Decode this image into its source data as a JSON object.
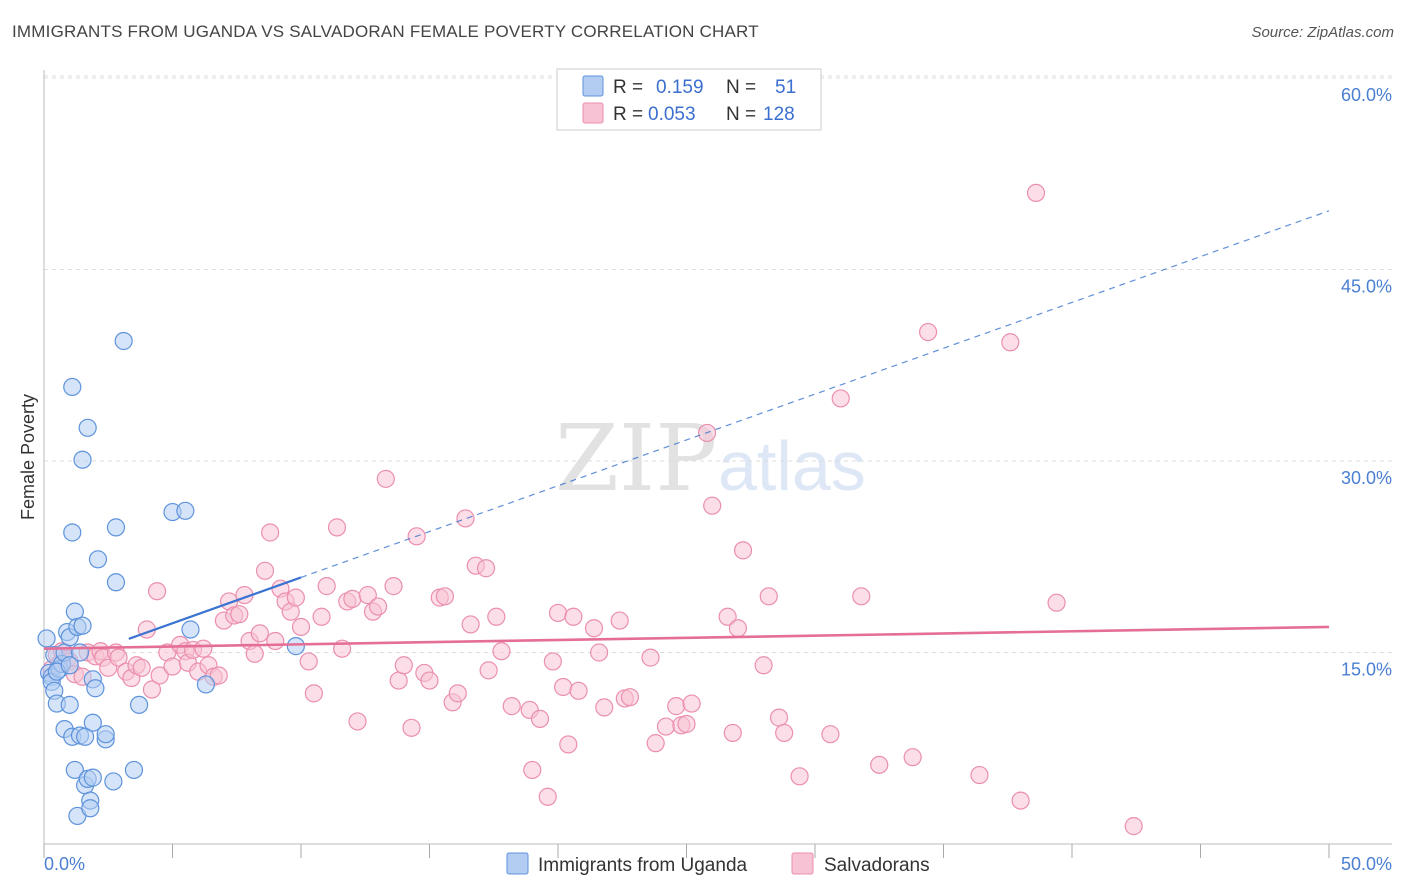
{
  "title": "IMMIGRANTS FROM UGANDA VS SALVADORAN FEMALE POVERTY CORRELATION CHART",
  "source": "Source: ZipAtlas.com",
  "watermark": {
    "zip": "ZIP",
    "atlas": "atlas"
  },
  "colors": {
    "blue_fill": "#b3cdf2",
    "blue_stroke": "#5e93dc",
    "blue_line": "#3a73d0",
    "pink_fill": "#f7c2d3",
    "pink_stroke": "#eb8fae",
    "pink_line": "#e56e97",
    "grid": "#dddddd",
    "tick_label": "#4a7fd1"
  },
  "legend": {
    "rows": [
      {
        "r_label": "R =",
        "r_value": "0.159",
        "n_label": "N =",
        "n_value": "51"
      },
      {
        "r_label": "R =",
        "r_value": "0.053",
        "n_label": "N =",
        "n_value": "128"
      }
    ]
  },
  "chart_data": {
    "type": "scatter",
    "title": "IMMIGRANTS FROM UGANDA VS SALVADORAN FEMALE POVERTY CORRELATION CHART",
    "xlabel": "",
    "ylabel": "Female Poverty",
    "xlim": [
      0,
      50
    ],
    "ylim": [
      0,
      60
    ],
    "x_tick_labels": {
      "min": "0.0%",
      "max": "50.0%"
    },
    "y_ticks": [
      15,
      30,
      45,
      60
    ],
    "y_tick_labels": [
      "15.0%",
      "30.0%",
      "45.0%",
      "60.0%"
    ],
    "grid": true,
    "legend_position": "top-center",
    "series": [
      {
        "name": "Immigrants from Uganda",
        "color": "blue",
        "R": 0.159,
        "N": 51,
        "trend": {
          "x0": 0,
          "y0": 13.7,
          "x1": 50,
          "y1": 49.6,
          "solid_until_x": 10
        },
        "points": [
          [
            0.1,
            16.1
          ],
          [
            0.2,
            13.4
          ],
          [
            0.3,
            13.1
          ],
          [
            0.3,
            12.7
          ],
          [
            0.4,
            14.8
          ],
          [
            0.4,
            12.0
          ],
          [
            0.5,
            11.0
          ],
          [
            0.6,
            13.7
          ],
          [
            0.7,
            14.1
          ],
          [
            0.8,
            15.0
          ],
          [
            0.8,
            9.0
          ],
          [
            0.9,
            16.6
          ],
          [
            1.0,
            16.2
          ],
          [
            1.0,
            10.9
          ],
          [
            1.1,
            35.8
          ],
          [
            1.1,
            24.4
          ],
          [
            1.1,
            8.4
          ],
          [
            1.2,
            18.2
          ],
          [
            1.2,
            5.8
          ],
          [
            1.3,
            2.2
          ],
          [
            1.3,
            17.0
          ],
          [
            1.4,
            15.0
          ],
          [
            1.4,
            8.5
          ],
          [
            1.5,
            17.1
          ],
          [
            1.5,
            30.1
          ],
          [
            1.6,
            8.4
          ],
          [
            1.6,
            4.6
          ],
          [
            1.7,
            32.6
          ],
          [
            1.7,
            5.1
          ],
          [
            1.8,
            3.4
          ],
          [
            1.8,
            2.8
          ],
          [
            1.9,
            5.2
          ],
          [
            1.9,
            12.9
          ],
          [
            1.9,
            9.5
          ],
          [
            2.0,
            12.2
          ],
          [
            2.1,
            22.3
          ],
          [
            2.4,
            8.2
          ],
          [
            2.4,
            8.6
          ],
          [
            2.7,
            4.9
          ],
          [
            2.8,
            20.5
          ],
          [
            2.8,
            24.8
          ],
          [
            3.1,
            39.4
          ],
          [
            3.5,
            5.8
          ],
          [
            3.7,
            10.9
          ],
          [
            5.0,
            26.0
          ],
          [
            5.5,
            26.1
          ],
          [
            5.7,
            16.8
          ],
          [
            6.3,
            12.5
          ],
          [
            9.8,
            15.5
          ],
          [
            0.5,
            13.5
          ],
          [
            1.0,
            14.0
          ]
        ]
      },
      {
        "name": "Salvadorans",
        "color": "pink",
        "R": 0.053,
        "N": 128,
        "trend": {
          "x0": 0,
          "y0": 15.3,
          "x1": 50,
          "y1": 17.0
        },
        "points": [
          [
            0.3,
            13.7
          ],
          [
            0.5,
            14.8
          ],
          [
            0.6,
            14.1
          ],
          [
            0.7,
            15.1
          ],
          [
            0.9,
            14.5
          ],
          [
            1.0,
            14.3
          ],
          [
            1.2,
            13.3
          ],
          [
            1.5,
            13.1
          ],
          [
            1.7,
            15.0
          ],
          [
            2.0,
            14.7
          ],
          [
            2.2,
            15.1
          ],
          [
            2.3,
            14.6
          ],
          [
            2.5,
            13.8
          ],
          [
            2.8,
            15.0
          ],
          [
            2.9,
            14.6
          ],
          [
            3.2,
            13.5
          ],
          [
            3.4,
            13.0
          ],
          [
            3.6,
            14.0
          ],
          [
            3.8,
            13.8
          ],
          [
            4.0,
            16.8
          ],
          [
            4.2,
            12.1
          ],
          [
            4.4,
            19.8
          ],
          [
            4.5,
            13.2
          ],
          [
            4.8,
            15.0
          ],
          [
            5.0,
            13.9
          ],
          [
            5.3,
            15.6
          ],
          [
            5.5,
            15.1
          ],
          [
            5.6,
            14.2
          ],
          [
            5.8,
            15.2
          ],
          [
            6.0,
            13.5
          ],
          [
            6.2,
            15.3
          ],
          [
            6.4,
            14.0
          ],
          [
            6.6,
            13.1
          ],
          [
            6.8,
            13.2
          ],
          [
            7.0,
            17.5
          ],
          [
            7.2,
            19.0
          ],
          [
            7.4,
            17.9
          ],
          [
            7.6,
            18.0
          ],
          [
            7.8,
            19.5
          ],
          [
            8.0,
            15.9
          ],
          [
            8.2,
            14.9
          ],
          [
            8.4,
            16.5
          ],
          [
            8.6,
            21.4
          ],
          [
            8.8,
            24.4
          ],
          [
            9.0,
            15.9
          ],
          [
            9.2,
            20.0
          ],
          [
            9.4,
            19.0
          ],
          [
            9.6,
            18.2
          ],
          [
            9.8,
            19.3
          ],
          [
            10.0,
            17.0
          ],
          [
            10.3,
            14.3
          ],
          [
            10.5,
            11.8
          ],
          [
            10.8,
            17.8
          ],
          [
            11.0,
            20.2
          ],
          [
            11.4,
            24.8
          ],
          [
            11.6,
            15.3
          ],
          [
            11.8,
            19.0
          ],
          [
            12.0,
            19.2
          ],
          [
            12.2,
            9.6
          ],
          [
            12.6,
            19.5
          ],
          [
            12.8,
            18.2
          ],
          [
            13.0,
            18.6
          ],
          [
            13.3,
            28.6
          ],
          [
            13.6,
            20.2
          ],
          [
            13.8,
            12.8
          ],
          [
            14.0,
            14.0
          ],
          [
            14.3,
            9.1
          ],
          [
            14.5,
            24.1
          ],
          [
            14.8,
            13.4
          ],
          [
            15.0,
            12.8
          ],
          [
            15.4,
            19.3
          ],
          [
            15.6,
            19.4
          ],
          [
            15.9,
            11.1
          ],
          [
            16.1,
            11.8
          ],
          [
            16.4,
            25.5
          ],
          [
            16.6,
            17.2
          ],
          [
            16.8,
            21.8
          ],
          [
            17.2,
            21.6
          ],
          [
            17.3,
            13.6
          ],
          [
            17.6,
            17.8
          ],
          [
            17.8,
            15.1
          ],
          [
            18.2,
            10.8
          ],
          [
            18.9,
            10.5
          ],
          [
            19.0,
            5.8
          ],
          [
            19.3,
            9.8
          ],
          [
            19.6,
            3.7
          ],
          [
            19.8,
            14.3
          ],
          [
            20.0,
            18.1
          ],
          [
            20.2,
            12.3
          ],
          [
            20.4,
            7.8
          ],
          [
            20.6,
            17.8
          ],
          [
            20.8,
            12.0
          ],
          [
            21.4,
            16.9
          ],
          [
            21.6,
            15.0
          ],
          [
            21.8,
            10.7
          ],
          [
            22.4,
            17.5
          ],
          [
            22.6,
            11.4
          ],
          [
            22.8,
            11.5
          ],
          [
            23.6,
            14.6
          ],
          [
            23.8,
            7.9
          ],
          [
            24.2,
            9.2
          ],
          [
            24.6,
            10.8
          ],
          [
            24.8,
            9.3
          ],
          [
            25.0,
            9.4
          ],
          [
            25.2,
            11.0
          ],
          [
            25.8,
            32.2
          ],
          [
            26.0,
            26.5
          ],
          [
            26.6,
            17.8
          ],
          [
            26.8,
            8.7
          ],
          [
            27.0,
            16.9
          ],
          [
            27.2,
            23.0
          ],
          [
            28.0,
            14.0
          ],
          [
            28.2,
            19.4
          ],
          [
            28.6,
            9.9
          ],
          [
            28.8,
            8.7
          ],
          [
            29.4,
            5.3
          ],
          [
            30.6,
            8.6
          ],
          [
            31.0,
            34.9
          ],
          [
            31.8,
            19.4
          ],
          [
            32.5,
            6.2
          ],
          [
            33.8,
            6.8
          ],
          [
            34.4,
            40.1
          ],
          [
            36.4,
            5.4
          ],
          [
            37.6,
            39.3
          ],
          [
            38.0,
            3.4
          ],
          [
            38.6,
            51.0
          ],
          [
            39.4,
            18.9
          ],
          [
            42.4,
            1.4
          ]
        ]
      }
    ]
  },
  "bottom_legend": [
    {
      "label": "Immigrants from Uganda",
      "color": "blue"
    },
    {
      "label": "Salvadorans",
      "color": "pink"
    }
  ]
}
